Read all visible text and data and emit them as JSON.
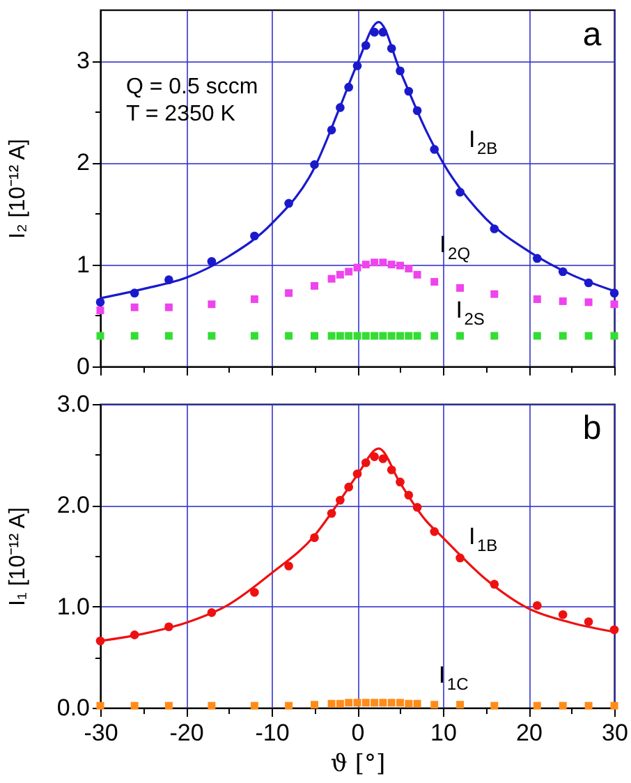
{
  "chart_data": [
    {
      "type": "scatter",
      "ylabel": "I₂ [10⁻¹² A]",
      "annotations": [
        "Q = 0.5 sccm",
        "T = 2350 K",
        "a"
      ],
      "xlim": [
        -30,
        30
      ],
      "xticks": [
        -30,
        -20,
        -10,
        0,
        10,
        20,
        30
      ],
      "ylim": [
        0,
        3.5
      ],
      "yticks": [
        0,
        1,
        2,
        3
      ],
      "grid": true,
      "legend": false,
      "tick_labels": "y",
      "series": [
        {
          "name": "I$_{2B}$",
          "color": "#1a1acc",
          "marker": "circle",
          "x": [
            -30,
            -26,
            -22,
            -17,
            -12,
            -8,
            -5,
            -3,
            -2,
            -1,
            0,
            1,
            2,
            3,
            4,
            5,
            6,
            7,
            9,
            12,
            16,
            21,
            24,
            27,
            30
          ],
          "values": [
            0.63,
            0.72,
            0.85,
            1.03,
            1.28,
            1.6,
            1.98,
            2.32,
            2.54,
            2.74,
            2.95,
            3.15,
            3.28,
            3.28,
            3.12,
            2.9,
            2.7,
            2.51,
            2.13,
            1.71,
            1.35,
            1.06,
            0.93,
            0.82,
            0.72
          ]
        },
        {
          "type": "line",
          "color": "#1a1acc",
          "x": [
            -30,
            -25,
            -20,
            -15,
            -10,
            -5,
            -2,
            0,
            2.5,
            5,
            8,
            10,
            15,
            20,
            25,
            30
          ],
          "values": [
            0.67,
            0.76,
            0.87,
            1.08,
            1.4,
            1.95,
            2.55,
            2.97,
            3.38,
            2.9,
            2.32,
            2.0,
            1.45,
            1.13,
            0.9,
            0.74
          ]
        },
        {
          "name": "I$_{2Q}$",
          "color": "#ee44ee",
          "marker": "square",
          "x": [
            -30,
            -26,
            -22,
            -17,
            -12,
            -8,
            -5,
            -3,
            -2,
            -1,
            0,
            1,
            2,
            3,
            4,
            5,
            6,
            7,
            9,
            12,
            16,
            21,
            24,
            27,
            30
          ],
          "values": [
            0.55,
            0.58,
            0.58,
            0.61,
            0.66,
            0.72,
            0.79,
            0.86,
            0.9,
            0.93,
            0.97,
            1.0,
            1.02,
            1.02,
            1.0,
            0.99,
            0.96,
            0.9,
            0.83,
            0.77,
            0.71,
            0.66,
            0.64,
            0.63,
            0.61
          ]
        },
        {
          "name": "I$_{2S}$",
          "color": "#33dd33",
          "marker": "square",
          "x": [
            -30,
            -26,
            -22,
            -17,
            -12,
            -8,
            -5,
            -3,
            -2,
            -1,
            0,
            1,
            2,
            3,
            4,
            5,
            6,
            7,
            9,
            12,
            16,
            21,
            24,
            27,
            30
          ],
          "values": [
            0.3,
            0.3,
            0.3,
            0.3,
            0.3,
            0.3,
            0.3,
            0.3,
            0.3,
            0.3,
            0.3,
            0.3,
            0.3,
            0.3,
            0.3,
            0.3,
            0.3,
            0.3,
            0.3,
            0.3,
            0.3,
            0.3,
            0.3,
            0.3,
            0.3
          ]
        }
      ]
    },
    {
      "type": "scatter",
      "xlabel": "ϑ [°]",
      "ylabel": "I₁ [10⁻¹² A]",
      "annotations": [
        "b"
      ],
      "xlim": [
        -30,
        30
      ],
      "xticks": [
        -30,
        -20,
        -10,
        0,
        10,
        20,
        30
      ],
      "ylim": [
        0,
        3.0
      ],
      "yticks": [
        {
          "value": 0,
          "label": "0.0"
        },
        {
          "value": 1,
          "label": "1.0"
        },
        {
          "value": 2,
          "label": "2.0"
        },
        {
          "value": 3,
          "label": "3.0"
        }
      ],
      "grid": true,
      "legend": false,
      "series": [
        {
          "name": "I$_{1B}$",
          "color": "#ee1111",
          "marker": "circle",
          "x": [
            -30,
            -26,
            -22,
            -17,
            -12,
            -8,
            -5,
            -3,
            -2,
            -1,
            0,
            1,
            2,
            3,
            4,
            5,
            6,
            7,
            9,
            12,
            16,
            21,
            24,
            27,
            30
          ],
          "values": [
            0.66,
            0.72,
            0.8,
            0.94,
            1.14,
            1.4,
            1.68,
            1.92,
            2.05,
            2.18,
            2.31,
            2.42,
            2.48,
            2.46,
            2.35,
            2.23,
            2.1,
            1.98,
            1.74,
            1.48,
            1.22,
            1.01,
            0.92,
            0.85,
            0.77
          ]
        },
        {
          "type": "line",
          "color": "#ee1111",
          "x": [
            -30,
            -25,
            -20,
            -15,
            -10,
            -5,
            -2,
            0,
            2.5,
            5,
            8,
            10,
            15,
            20,
            25,
            30
          ],
          "values": [
            0.66,
            0.73,
            0.84,
            1.02,
            1.33,
            1.7,
            2.05,
            2.3,
            2.56,
            2.22,
            1.85,
            1.68,
            1.27,
            0.98,
            0.84,
            0.75
          ]
        },
        {
          "name": "I$_{1C}$",
          "color": "#ff8c1a",
          "marker": "square",
          "x": [
            -30,
            -26,
            -22,
            -17,
            -12,
            -8,
            -5,
            -3,
            -2,
            -1,
            0,
            1,
            2,
            3,
            4,
            5,
            6,
            7,
            9,
            12,
            16,
            21,
            24,
            27,
            30
          ],
          "values": [
            0.02,
            0.02,
            0.02,
            0.02,
            0.02,
            0.02,
            0.03,
            0.04,
            0.04,
            0.05,
            0.05,
            0.05,
            0.05,
            0.05,
            0.05,
            0.05,
            0.04,
            0.04,
            0.03,
            0.03,
            0.02,
            0.02,
            0.02,
            0.02,
            0.02
          ]
        }
      ]
    }
  ]
}
